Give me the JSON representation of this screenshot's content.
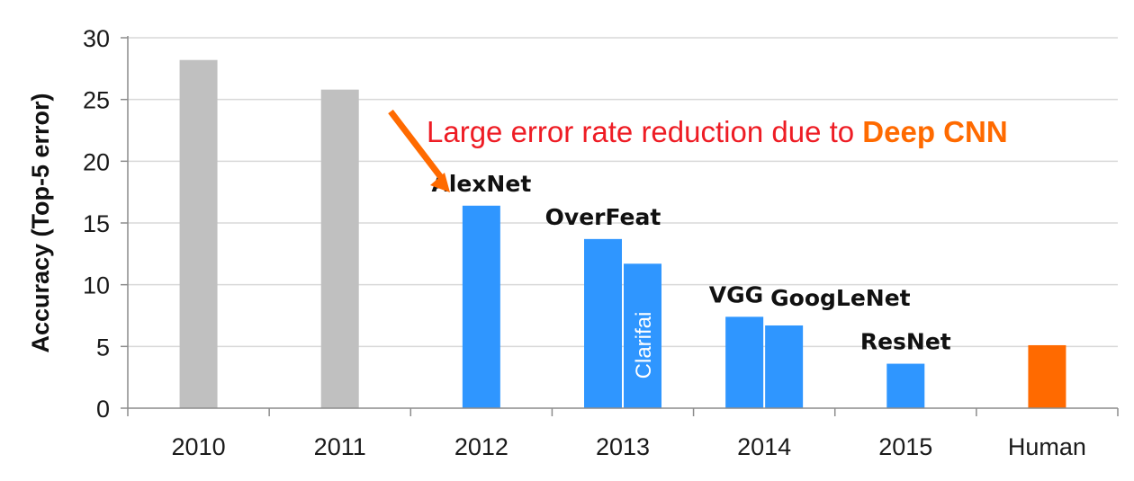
{
  "chart_data": {
    "type": "bar",
    "categories": [
      "2010",
      "2011",
      "2012",
      "2013",
      "2014",
      "2015",
      "Human"
    ],
    "bars": [
      {
        "category": "2010",
        "value": 28.2,
        "label": "",
        "color": "#c0c0c0"
      },
      {
        "category": "2011",
        "value": 25.8,
        "label": "",
        "color": "#c0c0c0"
      },
      {
        "category": "2012",
        "value": 16.4,
        "label": "AlexNet",
        "color": "#2f96ff"
      },
      {
        "category": "2013",
        "value": 13.7,
        "label": "OverFeat",
        "color": "#2f96ff"
      },
      {
        "category": "2013",
        "value": 11.7,
        "label": "Clarifai",
        "color": "#2f96ff"
      },
      {
        "category": "2014",
        "value": 7.4,
        "label": "VGG",
        "color": "#2f96ff"
      },
      {
        "category": "2014",
        "value": 6.7,
        "label": "GoogLeNet",
        "color": "#2f96ff"
      },
      {
        "category": "2015",
        "value": 3.6,
        "label": "ResNet",
        "color": "#2f96ff"
      },
      {
        "category": "Human",
        "value": 5.1,
        "label": "",
        "color": "#ff6a00"
      }
    ],
    "ylabel": "Accuracy (Top-5 error)",
    "xlabel": "",
    "ylim": [
      0,
      30
    ],
    "yticks": [
      "0",
      "5",
      "10",
      "15",
      "20",
      "25",
      "30"
    ],
    "grid": true,
    "annotation": {
      "text": "Large error rate reduction due to ",
      "highlight": "Deep CNN",
      "text_color": "#ee1c24",
      "highlight_color": "#ff6a00",
      "arrow_color": "#ff6a00"
    }
  }
}
